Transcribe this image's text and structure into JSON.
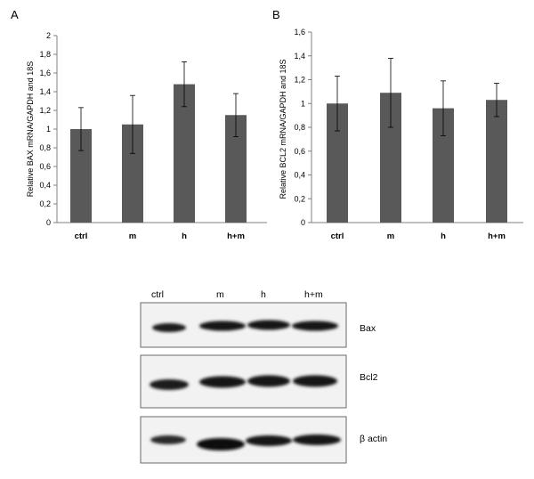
{
  "chart_data": [
    {
      "panel": "A",
      "type": "bar",
      "categories": [
        "ctrl",
        "m",
        "h",
        "h+m"
      ],
      "values": [
        1.0,
        1.05,
        1.48,
        1.15
      ],
      "errors": [
        0.23,
        0.31,
        0.24,
        0.23
      ],
      "ylabel": "Relative BAX mRNA/GAPDH and 18S",
      "ylim": [
        0,
        2
      ],
      "yticks": [
        "0",
        "0,2",
        "0,4",
        "0,6",
        "0,8",
        "1",
        "1,2",
        "1,4",
        "1,6",
        "1,8",
        "2"
      ],
      "bar_color": "#595959",
      "grid": false
    },
    {
      "panel": "B",
      "type": "bar",
      "categories": [
        "ctrl",
        "m",
        "h",
        "h+m"
      ],
      "values": [
        1.0,
        1.09,
        0.96,
        1.03
      ],
      "errors": [
        0.23,
        0.29,
        0.23,
        0.14
      ],
      "ylabel": "Relative BCL2 mRNA/GAPDH and 18S",
      "ylim": [
        0,
        1.6
      ],
      "yticks": [
        "0",
        "0,2",
        "0,4",
        "0,6",
        "0,8",
        "1",
        "1,2",
        "1,4",
        "1,6"
      ],
      "bar_color": "#595959",
      "grid": false
    }
  ],
  "western_blot": {
    "lanes": [
      "ctrl",
      "m",
      "h",
      "h+m"
    ],
    "rows": [
      {
        "label": "Bax"
      },
      {
        "label": "Bcl2"
      },
      {
        "label": "β actin"
      }
    ]
  }
}
